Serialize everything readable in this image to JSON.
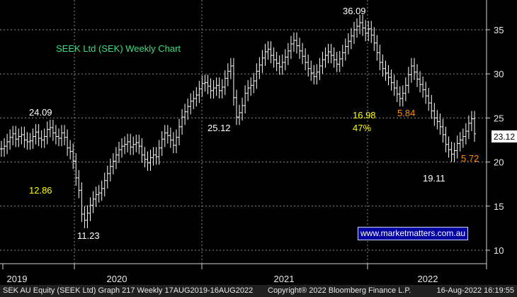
{
  "chart_data": {
    "type": "line",
    "title": "SEEK Ltd (SEK) Weekly Chart",
    "y_ticks": [
      10,
      15,
      20,
      25,
      30,
      35
    ],
    "ylim": [
      9,
      38
    ],
    "x_labels": [
      "2019",
      "2020",
      "2021",
      "2022"
    ],
    "last_price": "23.12",
    "grid": "dashed",
    "series": [
      {
        "values": [
          21.5,
          21.8,
          22.3,
          22.8,
          23.2,
          22.6,
          22.9,
          23.1,
          22.5,
          22.3,
          22.4,
          22.9,
          23.4,
          22.7,
          22.5,
          22.9,
          23.7,
          23.9,
          23.3,
          22.9,
          22.7,
          23.3,
          22.8,
          21.6,
          21.2,
          20.1,
          18.2,
          16.8,
          14.1,
          13.4,
          14.2,
          15.1,
          15.8,
          16.3,
          16.5,
          17.0,
          17.9,
          18.7,
          19.5,
          20.1,
          20.8,
          21.4,
          21.8,
          22.0,
          22.3,
          21.7,
          22.0,
          22.2,
          21.8,
          20.8,
          20.3,
          19.9,
          20.5,
          20.8,
          20.6,
          21.6,
          22.6,
          23.3,
          23.0,
          22.5,
          21.9,
          22.8,
          24.0,
          25.1,
          25.7,
          26.3,
          26.9,
          27.2,
          27.6,
          28.3,
          28.9,
          29.0,
          28.6,
          28.1,
          28.4,
          28.7,
          28.1,
          28.5,
          29.5,
          30.3,
          30.9,
          27.3,
          25.1,
          25.6,
          26.4,
          27.8,
          28.4,
          28.7,
          29.2,
          30.3,
          31.0,
          31.8,
          32.5,
          32.8,
          32.1,
          31.6,
          31.2,
          30.8,
          31.3,
          31.9,
          32.6,
          33.4,
          33.8,
          33.2,
          32.6,
          32.0,
          31.3,
          30.6,
          30.1,
          29.7,
          30.2,
          30.9,
          31.6,
          32.1,
          32.5,
          32.1,
          31.6,
          31.1,
          31.7,
          32.4,
          33.1,
          33.7,
          34.3,
          35.0,
          35.4,
          35.8,
          35.2,
          34.6,
          35.1,
          34.4,
          33.5,
          32.4,
          31.3,
          30.6,
          30.1,
          29.6,
          29.0,
          28.4,
          27.7,
          27.2,
          27.8,
          28.7,
          29.9,
          30.9,
          30.2,
          29.4,
          28.8,
          28.2,
          27.5,
          26.7,
          25.8,
          25.0,
          24.6,
          24.0,
          23.1,
          22.0,
          21.4,
          20.9,
          21.3,
          22.1,
          22.5,
          22.9,
          23.5,
          24.4,
          24.9,
          23.2
        ]
      }
    ],
    "annotations": [
      {
        "text": "24.09",
        "color": "#ffffff"
      },
      {
        "text": "12.86",
        "color": "#ffff00"
      },
      {
        "text": "11.23",
        "color": "#ffffff"
      },
      {
        "text": "25.12",
        "color": "#ffffff"
      },
      {
        "text": "36.09",
        "color": "#ffffff"
      },
      {
        "text": "16.98",
        "color": "#ffff00"
      },
      {
        "text": "47%",
        "color": "#ffff00"
      },
      {
        "text": "5.84",
        "color": "#ff8c00"
      },
      {
        "text": "19.11",
        "color": "#ffffff"
      },
      {
        "text": "5.72",
        "color": "#ff8c00"
      }
    ],
    "colors": {
      "background": "#000000",
      "series": "#ffffff",
      "grid": "#8c8c8c",
      "title": "#3ddc84",
      "label_box": "#ffffff"
    }
  },
  "watermark": "www.marketmatters.com.au",
  "footer": {
    "left": "SEK AU Equity (SEEK Ltd) Graph 217  Weekly 17AUG2019-16AUG2022",
    "center": "Copyright® 2022 Bloomberg Finance L.P.",
    "right": "16-Aug-2022 16:19:55"
  }
}
